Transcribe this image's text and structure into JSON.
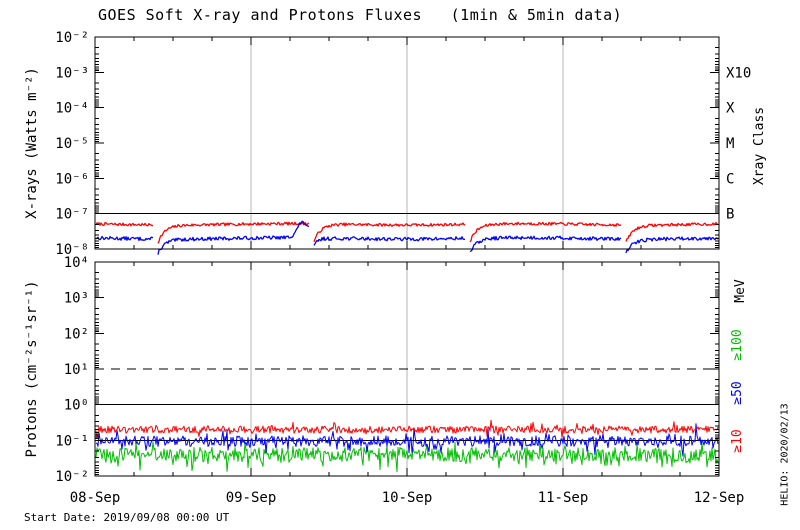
{
  "title": "GOES Soft X-ray and Protons Fluxes   (1min & 5min data)",
  "footer": {
    "start_date": "Start Date: 2019/09/08 00:00 UT"
  },
  "credit": "HELIO: 2020/02/13",
  "colors": {
    "grid": "#b4b4b4",
    "axis": "#000000",
    "xray_red": "#ff0000",
    "xray_blue": "#0000ff",
    "proton_ge100": "#00c000",
    "proton_ge50": "#0000ff",
    "proton_ge10": "#ff0000"
  },
  "chart_data": [
    {
      "type": "line",
      "panel": "xray",
      "title": "GOES Soft X-ray and Protons Fluxes (1min & 5min data)",
      "ylabel": "X-rays (Watts m⁻²)",
      "yscale": "log",
      "ylim": [
        1e-08,
        0.01
      ],
      "y_ticks": [
        {
          "label": "10⁻²",
          "exp": -2
        },
        {
          "label": "10⁻³",
          "exp": -3
        },
        {
          "label": "10⁻⁴",
          "exp": -4
        },
        {
          "label": "10⁻⁵",
          "exp": -5
        },
        {
          "label": "10⁻⁶",
          "exp": -6
        },
        {
          "label": "10⁻⁷",
          "exp": -7
        },
        {
          "label": "10⁻⁸",
          "exp": -8
        }
      ],
      "right_axis": {
        "label": "Xray Class",
        "ticks": [
          {
            "label": "X10",
            "exp": -3
          },
          {
            "label": "X",
            "exp": -4
          },
          {
            "label": "M",
            "exp": -5
          },
          {
            "label": "C",
            "exp": -6
          },
          {
            "label": "B",
            "exp": -7
          }
        ]
      },
      "reference_lines": [
        {
          "value": 1e-07,
          "style": "solid"
        }
      ],
      "series": [
        {
          "name": "xray red",
          "color": "#ff0000",
          "baseline": 5e-08,
          "noise_decades": 0.04,
          "eclipse_drop_decades": 0.62
        },
        {
          "name": "xray blue",
          "color": "#0000ff",
          "baseline": 2e-08,
          "noise_decades": 0.05,
          "eclipse_drop_decades": 0.5
        }
      ],
      "data_gaps_x_days": [
        0.4,
        1.4,
        2.4,
        3.4
      ]
    },
    {
      "type": "line",
      "panel": "protons",
      "ylabel": "Protons (cm⁻²s⁻¹sr⁻¹)",
      "yscale": "log",
      "ylim": [
        0.01,
        10000
      ],
      "x_ticks": [
        "08-Sep",
        "09-Sep",
        "10-Sep",
        "11-Sep",
        "12-Sep"
      ],
      "y_ticks": [
        {
          "label": "10⁴",
          "exp": 4
        },
        {
          "label": "10³",
          "exp": 3
        },
        {
          "label": "10²",
          "exp": 2
        },
        {
          "label": "10¹",
          "exp": 1
        },
        {
          "label": "10⁰",
          "exp": 0
        },
        {
          "label": "10⁻¹",
          "exp": -1
        },
        {
          "label": "10⁻²",
          "exp": -2
        }
      ],
      "right_axis": {
        "label": "MeV",
        "ticks": [
          {
            "label": "≥100",
            "color": "#00c000"
          },
          {
            "label": "≥50",
            "color": "#0000ff"
          },
          {
            "label": "≥10",
            "color": "#ff0000"
          }
        ]
      },
      "reference_lines": [
        {
          "value": 10,
          "style": "dashed"
        },
        {
          "value": 1,
          "style": "solid"
        },
        {
          "value": 0.1,
          "style": "solid"
        }
      ],
      "series": [
        {
          "name": "protons ≥100 MeV",
          "color": "#00c000",
          "baseline": 0.04,
          "noise_decades": 0.2
        },
        {
          "name": "protons ≥50 MeV",
          "color": "#0000ff",
          "baseline": 0.095,
          "noise_decades": 0.15
        },
        {
          "name": "protons ≥10 MeV",
          "color": "#ff0000",
          "baseline": 0.2,
          "noise_decades": 0.1
        }
      ]
    }
  ]
}
